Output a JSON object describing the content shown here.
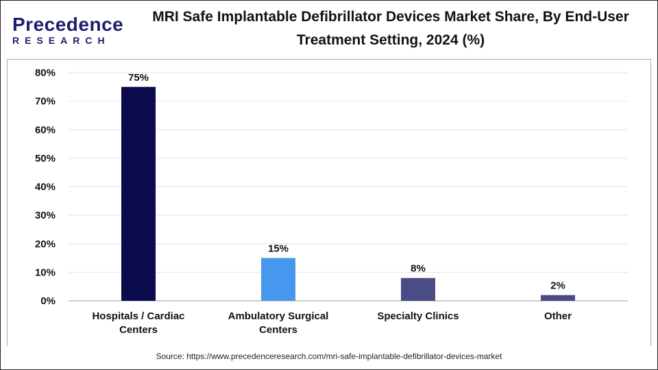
{
  "logo": {
    "line1": "Precedence",
    "line2": "RESEARCH"
  },
  "title": "MRI Safe Implantable Defibrillator Devices Market Share, By End-User Treatment Setting, 2024 (%)",
  "source": "Source: https://www.precedenceresearch.com/mri-safe-implantable-defibrillator-devices-market",
  "chart_data": {
    "type": "bar",
    "categories": [
      [
        "Hospitals / Cardiac",
        "Centers"
      ],
      [
        "Ambulatory Surgical",
        "Centers"
      ],
      [
        "Specialty Clinics"
      ],
      [
        "Other"
      ]
    ],
    "values": [
      75,
      15,
      8,
      2
    ],
    "data_labels": [
      "75%",
      "15%",
      "8%",
      "2%"
    ],
    "colors": [
      "#0b0b4d",
      "#4598ee",
      "#4b4c85",
      "#4b4c85"
    ],
    "ylim": [
      0,
      80
    ],
    "yticks": [
      "0%",
      "10%",
      "20%",
      "30%",
      "40%",
      "50%",
      "60%",
      "70%",
      "80%"
    ],
    "grid": true
  }
}
